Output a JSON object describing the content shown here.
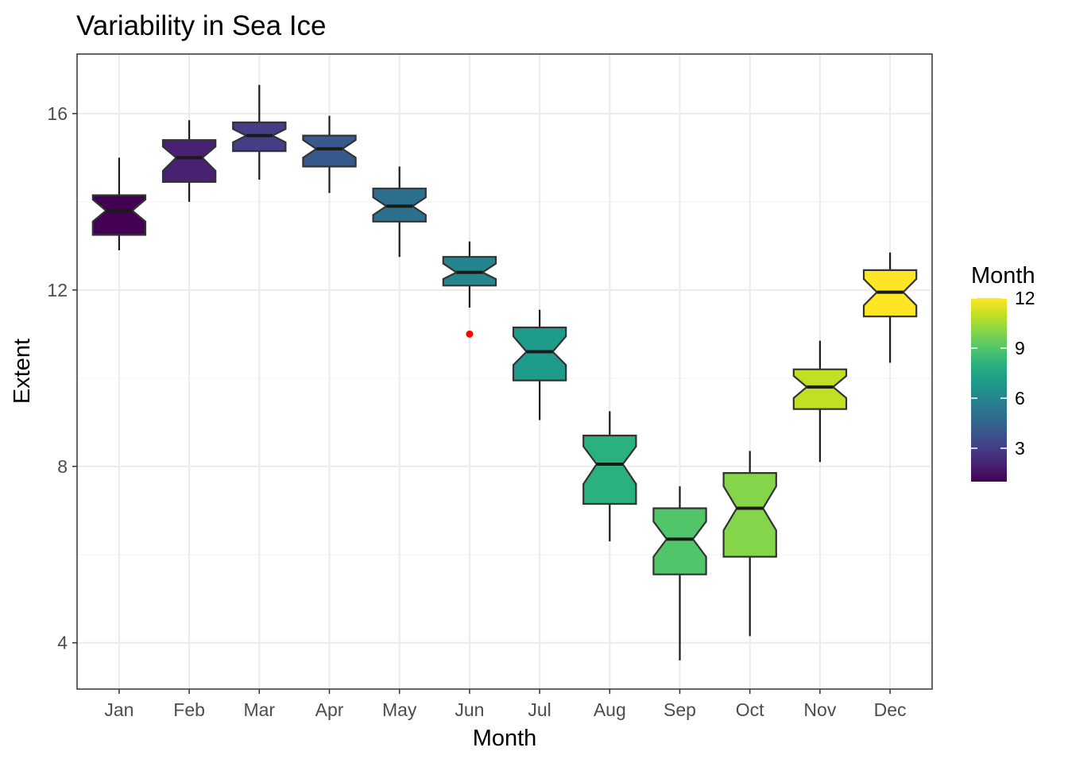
{
  "chart_data": {
    "type": "boxplot",
    "title": "Variability in Sea Ice",
    "xlabel": "Month",
    "ylabel": "Extent",
    "ylim": [
      2.95,
      17.35
    ],
    "y_ticks": [
      4,
      8,
      12,
      16
    ],
    "y_tick_labels": [
      "4",
      "8",
      "12",
      "16"
    ],
    "grid": true,
    "notched": true,
    "categories": [
      "Jan",
      "Feb",
      "Mar",
      "Apr",
      "May",
      "Jun",
      "Jul",
      "Aug",
      "Sep",
      "Oct",
      "Nov",
      "Dec"
    ],
    "fill_values": [
      1,
      2,
      3,
      4,
      5,
      6,
      7,
      8,
      9,
      10,
      11,
      12
    ],
    "boxes": [
      {
        "category": "Jan",
        "min": 12.9,
        "q1": 13.25,
        "median": 13.8,
        "q3": 14.15,
        "max": 15.0,
        "notch_low": 13.55,
        "notch_high": 14.05,
        "fill": "#440154"
      },
      {
        "category": "Feb",
        "min": 14.0,
        "q1": 14.45,
        "median": 15.0,
        "q3": 15.4,
        "max": 15.85,
        "notch_low": 14.7,
        "notch_high": 15.25,
        "fill": "#482173"
      },
      {
        "category": "Mar",
        "min": 14.5,
        "q1": 15.15,
        "median": 15.5,
        "q3": 15.8,
        "max": 16.65,
        "notch_low": 15.35,
        "notch_high": 15.65,
        "fill": "#433E85"
      },
      {
        "category": "Apr",
        "min": 14.2,
        "q1": 14.8,
        "median": 15.2,
        "q3": 15.5,
        "max": 15.95,
        "notch_low": 15.0,
        "notch_high": 15.4,
        "fill": "#38598C"
      },
      {
        "category": "May",
        "min": 12.75,
        "q1": 13.55,
        "median": 13.9,
        "q3": 14.3,
        "max": 14.8,
        "notch_low": 13.7,
        "notch_high": 14.1,
        "fill": "#2D708E"
      },
      {
        "category": "Jun",
        "min": 11.6,
        "q1": 12.1,
        "median": 12.4,
        "q3": 12.75,
        "max": 13.1,
        "notch_low": 12.25,
        "notch_high": 12.6,
        "fill": "#25858E"
      },
      {
        "category": "Jul",
        "min": 9.05,
        "q1": 9.95,
        "median": 10.6,
        "q3": 11.15,
        "max": 11.55,
        "notch_low": 10.3,
        "notch_high": 10.95,
        "fill": "#1E9B8A"
      },
      {
        "category": "Aug",
        "min": 6.3,
        "q1": 7.15,
        "median": 8.05,
        "q3": 8.7,
        "max": 9.25,
        "notch_low": 7.6,
        "notch_high": 8.45,
        "fill": "#2BB07F"
      },
      {
        "category": "Sep",
        "min": 3.6,
        "q1": 5.55,
        "median": 6.35,
        "q3": 7.05,
        "max": 7.55,
        "notch_low": 5.95,
        "notch_high": 6.75,
        "fill": "#51C56A"
      },
      {
        "category": "Oct",
        "min": 4.15,
        "q1": 5.95,
        "median": 7.05,
        "q3": 7.85,
        "max": 8.35,
        "notch_low": 6.55,
        "notch_high": 7.55,
        "fill": "#85D54A"
      },
      {
        "category": "Nov",
        "min": 8.1,
        "q1": 9.3,
        "median": 9.8,
        "q3": 10.2,
        "max": 10.85,
        "notch_low": 9.55,
        "notch_high": 10.05,
        "fill": "#C2DF23"
      },
      {
        "category": "Dec",
        "min": 10.35,
        "q1": 11.4,
        "median": 11.95,
        "q3": 12.45,
        "max": 12.85,
        "notch_low": 11.65,
        "notch_high": 12.25,
        "fill": "#FDE725"
      }
    ],
    "outliers": [
      {
        "category": "Jun",
        "value": 11.0,
        "color": "#FF0000"
      }
    ],
    "legend": {
      "title": "Month",
      "type": "colorbar",
      "placement": "right",
      "range": [
        1,
        12
      ],
      "ticks": [
        3,
        6,
        9,
        12
      ],
      "tick_labels": [
        "3",
        "6",
        "9",
        "12"
      ],
      "colors": [
        "#440154",
        "#482173",
        "#433E85",
        "#38598C",
        "#2D708E",
        "#25858E",
        "#1E9B8A",
        "#2BB07F",
        "#51C56A",
        "#85D54A",
        "#C2DF23",
        "#FDE725"
      ]
    },
    "colors": {
      "panel_border": "#333333",
      "grid_major": "#EBEBEB",
      "grid_minor": "#F5F5F5",
      "box_stroke": "#333333",
      "whisker": "#1A1A1A"
    }
  }
}
